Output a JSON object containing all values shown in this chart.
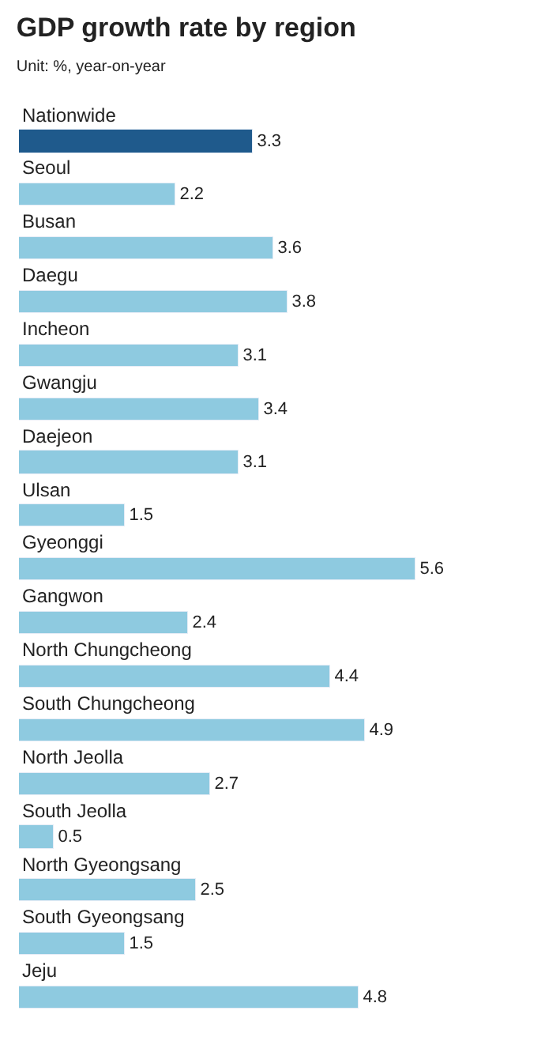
{
  "chart_data": {
    "type": "bar",
    "orientation": "horizontal",
    "title": "GDP growth rate by region",
    "subtitle": "Unit: %, year-on-year",
    "categories": [
      "Nationwide",
      "Seoul",
      "Busan",
      "Daegu",
      "Incheon",
      "Gwangju",
      "Daejeon",
      "Ulsan",
      "Gyeonggi",
      "Gangwon",
      "North Chungcheong",
      "South Chungcheong",
      "North Jeolla",
      "South Jeolla",
      "North Gyeongsang",
      "South Gyeongsang",
      "Jeju"
    ],
    "values": [
      3.3,
      2.2,
      3.6,
      3.8,
      3.1,
      3.4,
      3.1,
      1.5,
      5.6,
      2.4,
      4.4,
      4.9,
      2.7,
      0.5,
      2.5,
      1.5,
      4.8
    ],
    "colors": [
      "#1f5a8c",
      "#8ecae0",
      "#8ecae0",
      "#8ecae0",
      "#8ecae0",
      "#8ecae0",
      "#8ecae0",
      "#8ecae0",
      "#8ecae0",
      "#8ecae0",
      "#8ecae0",
      "#8ecae0",
      "#8ecae0",
      "#8ecae0",
      "#8ecae0",
      "#8ecae0",
      "#8ecae0"
    ],
    "data_labels": true
  }
}
